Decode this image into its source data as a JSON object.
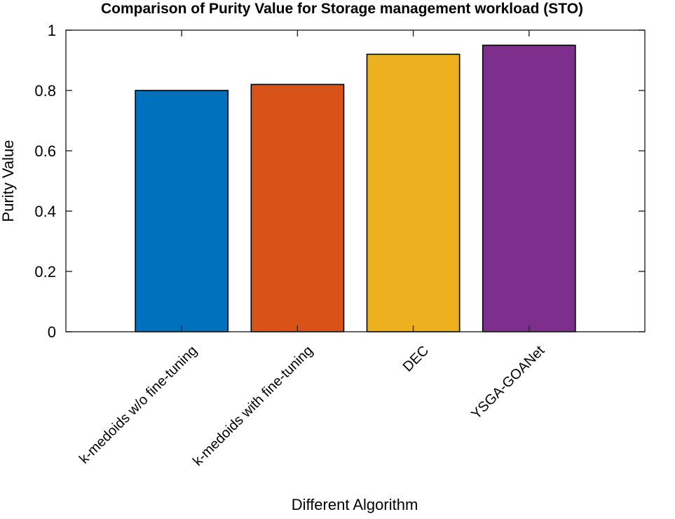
{
  "chart_data": {
    "type": "bar",
    "title": "Comparison of Purity Value for Storage management workload (STO)",
    "xlabel": "Different Algorithm",
    "ylabel": "Purity Value",
    "categories": [
      "k-medoids w/o fine-tuning",
      "k-medoids with fine-tuning",
      "DEC",
      "YSGA-GOANet"
    ],
    "values": [
      0.8,
      0.82,
      0.92,
      0.95
    ],
    "bar_colors": [
      "#0072bd",
      "#d95319",
      "#edb120",
      "#7e2f8e"
    ],
    "ylim": [
      0,
      1
    ],
    "yticks": [
      0,
      0.2,
      0.4,
      0.6,
      0.8,
      1
    ],
    "ytick_labels": [
      "0",
      "0.2",
      "0.4",
      "0.6",
      "0.8",
      "1"
    ],
    "grid": false,
    "legend": "none"
  }
}
